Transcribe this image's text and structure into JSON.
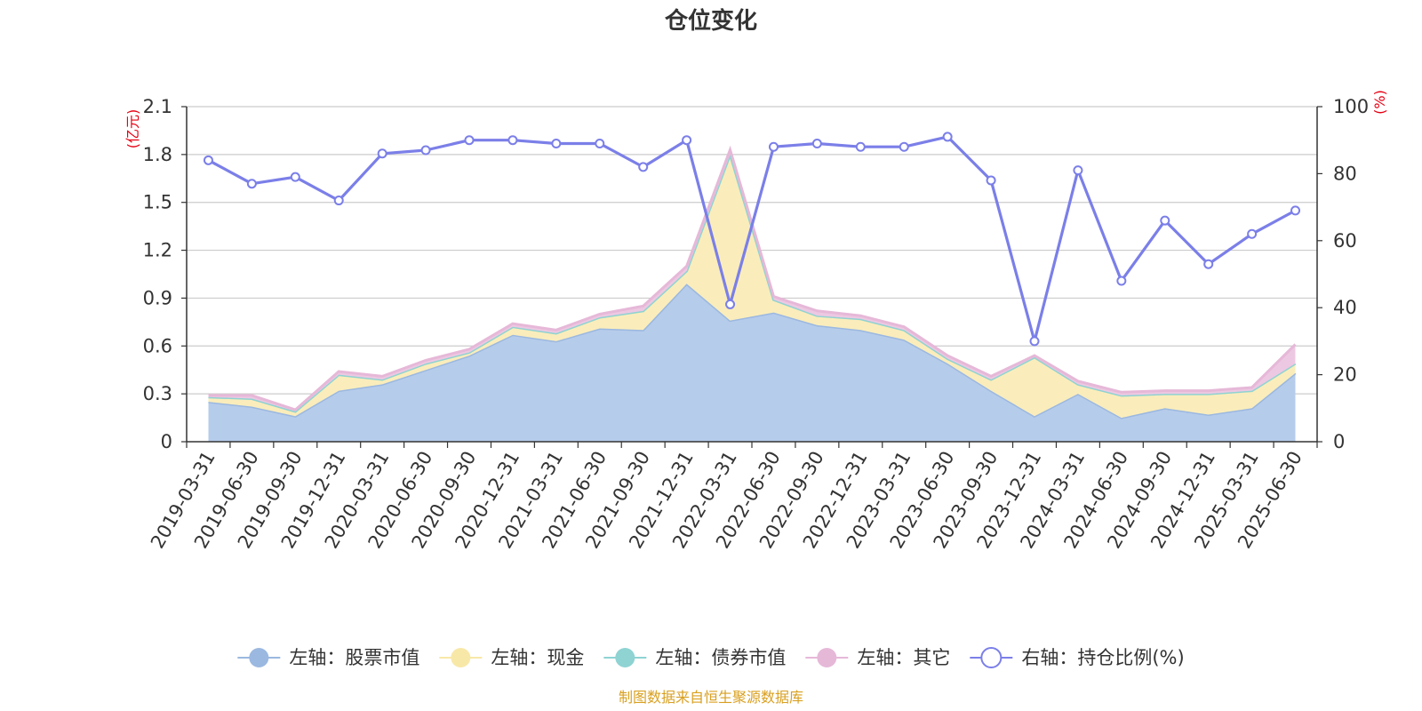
{
  "chart_data": {
    "type": "area",
    "title": "仓位变化",
    "left_unit": "(亿元)",
    "right_unit": "(%)",
    "left_axis": {
      "min": 0,
      "max": 2.1,
      "ticks": [
        "0",
        "0.3",
        "0.6",
        "0.9",
        "1.2",
        "1.5",
        "1.8",
        "2.1"
      ]
    },
    "right_axis": {
      "min": 0,
      "max": 100,
      "ticks": [
        "0",
        "20",
        "40",
        "60",
        "80",
        "100"
      ]
    },
    "categories": [
      "2019-03-31",
      "2019-06-30",
      "2019-09-30",
      "2019-12-31",
      "2020-03-31",
      "2020-06-30",
      "2020-09-30",
      "2020-12-31",
      "2021-03-31",
      "2021-06-30",
      "2021-09-30",
      "2021-12-31",
      "2022-03-31",
      "2022-06-30",
      "2022-09-30",
      "2022-12-31",
      "2023-03-31",
      "2023-06-30",
      "2023-09-30",
      "2023-12-31",
      "2024-03-31",
      "2024-06-30",
      "2024-09-30",
      "2024-12-31",
      "2025-03-31",
      "2025-06-30"
    ],
    "series": [
      {
        "name": "左轴：股票市值",
        "axis": "left",
        "stacked": true,
        "color": "#9bb8e0",
        "fill": "#b6cceb",
        "values": [
          0.25,
          0.22,
          0.16,
          0.32,
          0.36,
          0.45,
          0.54,
          0.67,
          0.63,
          0.71,
          0.7,
          0.99,
          0.76,
          0.81,
          0.73,
          0.7,
          0.64,
          0.49,
          0.32,
          0.16,
          0.3,
          0.15,
          0.21,
          0.17,
          0.21,
          0.43
        ]
      },
      {
        "name": "左轴：现金",
        "axis": "left",
        "stacked": true,
        "color": "#f8e8a8",
        "fill": "#faedbb",
        "values": [
          0.03,
          0.05,
          0.03,
          0.1,
          0.03,
          0.04,
          0.02,
          0.05,
          0.05,
          0.07,
          0.12,
          0.08,
          1.04,
          0.08,
          0.06,
          0.07,
          0.06,
          0.03,
          0.07,
          0.37,
          0.06,
          0.14,
          0.09,
          0.13,
          0.11,
          0.06
        ]
      },
      {
        "name": "左轴：债券市值",
        "axis": "left",
        "stacked": true,
        "color": "#8fd3d3",
        "fill": "#a8dede",
        "values": [
          0,
          0,
          0,
          0,
          0,
          0,
          0,
          0,
          0,
          0,
          0,
          0,
          0,
          0,
          0,
          0,
          0,
          0,
          0,
          0,
          0,
          0,
          0,
          0,
          0,
          0
        ]
      },
      {
        "name": "左轴：其它",
        "axis": "left",
        "stacked": true,
        "color": "#e6b8d8",
        "fill": "#edc8e2",
        "values": [
          0.01,
          0.02,
          0.01,
          0.02,
          0.02,
          0.02,
          0.02,
          0.02,
          0.02,
          0.02,
          0.03,
          0.03,
          0.03,
          0.02,
          0.03,
          0.02,
          0.02,
          0.02,
          0.02,
          0.01,
          0.02,
          0.02,
          0.02,
          0.02,
          0.02,
          0.12
        ]
      },
      {
        "name": "右轴：持仓比例(%)",
        "axis": "right",
        "type": "line",
        "color": "#7b7fe8",
        "values": [
          84,
          77,
          79,
          72,
          86,
          87,
          90,
          90,
          89,
          89,
          82,
          90,
          41,
          88,
          89,
          88,
          88,
          91,
          78,
          30,
          81,
          48,
          66,
          53,
          62,
          69
        ]
      }
    ],
    "legend_position": "bottom",
    "source": "制图数据来自恒生聚源数据库"
  }
}
